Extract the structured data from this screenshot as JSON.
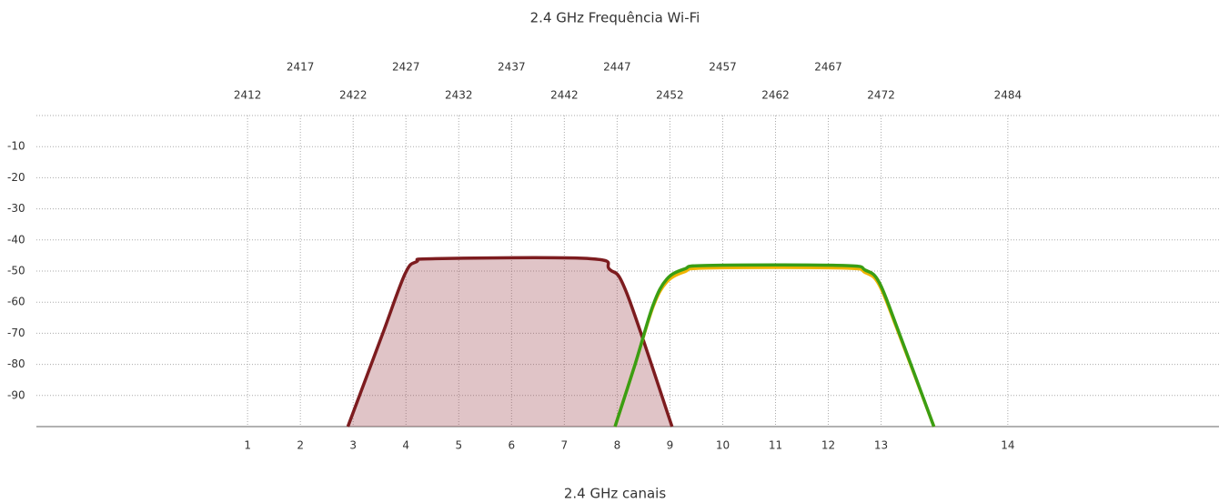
{
  "chart_data": {
    "type": "line",
    "title": "2.4 GHz Frequência Wi-Fi",
    "xlabel": "2.4 GHz canais",
    "xlim": [
      2392,
      2504
    ],
    "ylim": [
      -100,
      0
    ],
    "yticks": [
      -90,
      -80,
      -70,
      -60,
      -50,
      -40,
      -30,
      -20,
      -10
    ],
    "xticks": [
      2412,
      2417,
      2422,
      2427,
      2432,
      2437,
      2442,
      2447,
      2452,
      2457,
      2462,
      2467,
      2472,
      2484
    ],
    "channels": [
      1,
      2,
      3,
      4,
      5,
      6,
      7,
      8,
      9,
      10,
      11,
      12,
      13,
      14
    ],
    "grid": true,
    "series": [
      {
        "color": "#7d1c1f",
        "fill": "rgba(160,70,80,0.32)",
        "x": [
          2421.5,
          2424.7,
          2426.9,
          2428,
          2429.8,
          2444.4,
          2446.3,
          2447.9,
          2452.2
        ],
        "values": [
          -100,
          -71,
          -51,
          -47,
          -46,
          -46,
          -49.5,
          -57,
          -100
        ]
      },
      {
        "color": "#f0b400",
        "x": [
          2446.8,
          2448.7,
          2450.4,
          2451.7,
          2453.4,
          2455.5,
          2468.4,
          2470.5,
          2471.8,
          2473.5,
          2477
        ],
        "values": [
          -100,
          -80,
          -61.5,
          -53.5,
          -50.2,
          -49,
          -49,
          -50.5,
          -54.3,
          -68.5,
          -100
        ]
      },
      {
        "color": "#3a9e14",
        "x": [
          2446.8,
          2448.7,
          2450.4,
          2451.7,
          2453.4,
          2455.5,
          2468.4,
          2470.5,
          2471.8,
          2473.5,
          2477
        ],
        "values": [
          -100,
          -80,
          -61,
          -52.6,
          -49.3,
          -48.2,
          -48.2,
          -49.7,
          -53.5,
          -68,
          -100
        ]
      }
    ]
  }
}
